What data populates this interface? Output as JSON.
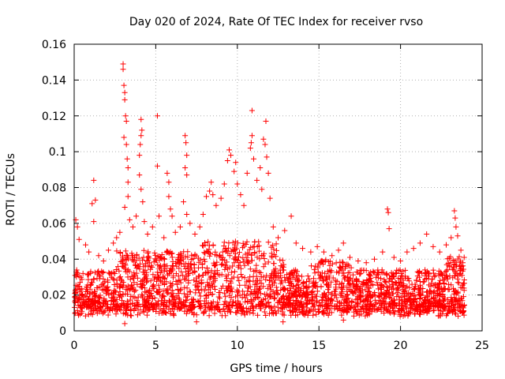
{
  "chart_data": {
    "type": "scatter",
    "title": "Day 020 of 2024, Rate Of TEC Index for receiver rvso",
    "xlabel": "GPS time / hours",
    "ylabel": "ROTI / TECUs",
    "xlim": [
      0,
      25
    ],
    "ylim": [
      0,
      0.16
    ],
    "xticks": [
      "0",
      "5",
      "10",
      "15",
      "20",
      "25"
    ],
    "yticks": [
      "0",
      "0.02",
      "0.04",
      "0.06",
      "0.08",
      "0.1",
      "0.12",
      "0.14",
      "0.16"
    ],
    "grid": true,
    "marker": "+",
    "color": "#ff0000",
    "series": [
      {
        "points": [
          [
            0.1,
            0.062
          ],
          [
            0.2,
            0.058
          ],
          [
            0.3,
            0.051
          ],
          [
            0.7,
            0.048
          ],
          [
            0.9,
            0.044
          ],
          [
            1.1,
            0.071
          ],
          [
            1.2,
            0.084
          ],
          [
            1.3,
            0.073
          ],
          [
            1.2,
            0.061
          ],
          [
            1.5,
            0.042
          ],
          [
            1.8,
            0.039
          ],
          [
            2.1,
            0.045
          ],
          [
            2.4,
            0.049
          ],
          [
            2.6,
            0.052
          ],
          [
            2.8,
            0.055
          ],
          [
            3.0,
            0.149
          ],
          [
            3.0,
            0.146
          ],
          [
            3.05,
            0.137
          ],
          [
            3.1,
            0.133
          ],
          [
            3.1,
            0.129
          ],
          [
            3.15,
            0.12
          ],
          [
            3.2,
            0.117
          ],
          [
            3.05,
            0.108
          ],
          [
            3.2,
            0.104
          ],
          [
            3.25,
            0.096
          ],
          [
            3.3,
            0.091
          ],
          [
            3.3,
            0.083
          ],
          [
            3.3,
            0.075
          ],
          [
            3.1,
            0.069
          ],
          [
            3.4,
            0.062
          ],
          [
            3.6,
            0.058
          ],
          [
            3.8,
            0.064
          ],
          [
            4.0,
            0.098
          ],
          [
            4.05,
            0.104
          ],
          [
            4.1,
            0.109
          ],
          [
            4.1,
            0.118
          ],
          [
            4.15,
            0.112
          ],
          [
            4.0,
            0.087
          ],
          [
            4.1,
            0.079
          ],
          [
            4.2,
            0.072
          ],
          [
            4.3,
            0.061
          ],
          [
            4.5,
            0.054
          ],
          [
            4.8,
            0.058
          ],
          [
            5.1,
            0.12
          ],
          [
            5.1,
            0.092
          ],
          [
            5.2,
            0.064
          ],
          [
            5.5,
            0.052
          ],
          [
            5.7,
            0.088
          ],
          [
            5.8,
            0.083
          ],
          [
            5.8,
            0.075
          ],
          [
            5.9,
            0.068
          ],
          [
            6.0,
            0.064
          ],
          [
            6.2,
            0.055
          ],
          [
            6.5,
            0.058
          ],
          [
            6.8,
            0.109
          ],
          [
            6.85,
            0.105
          ],
          [
            6.9,
            0.098
          ],
          [
            6.8,
            0.091
          ],
          [
            6.9,
            0.087
          ],
          [
            6.7,
            0.072
          ],
          [
            6.9,
            0.065
          ],
          [
            7.1,
            0.06
          ],
          [
            7.4,
            0.054
          ],
          [
            7.7,
            0.058
          ],
          [
            7.9,
            0.065
          ],
          [
            8.1,
            0.075
          ],
          [
            8.3,
            0.078
          ],
          [
            8.4,
            0.083
          ],
          [
            8.5,
            0.076
          ],
          [
            8.7,
            0.07
          ],
          [
            9.0,
            0.074
          ],
          [
            9.2,
            0.082
          ],
          [
            9.4,
            0.095
          ],
          [
            9.5,
            0.101
          ],
          [
            9.6,
            0.098
          ],
          [
            9.8,
            0.089
          ],
          [
            9.9,
            0.094
          ],
          [
            10.0,
            0.082
          ],
          [
            10.2,
            0.076
          ],
          [
            10.4,
            0.07
          ],
          [
            10.6,
            0.088
          ],
          [
            10.8,
            0.102
          ],
          [
            10.85,
            0.105
          ],
          [
            10.9,
            0.109
          ],
          [
            10.9,
            0.123
          ],
          [
            11.0,
            0.096
          ],
          [
            11.2,
            0.084
          ],
          [
            11.4,
            0.091
          ],
          [
            11.5,
            0.079
          ],
          [
            11.6,
            0.107
          ],
          [
            11.7,
            0.104
          ],
          [
            11.75,
            0.117
          ],
          [
            11.8,
            0.097
          ],
          [
            11.9,
            0.088
          ],
          [
            12.0,
            0.074
          ],
          [
            12.2,
            0.058
          ],
          [
            12.5,
            0.052
          ],
          [
            12.9,
            0.056
          ],
          [
            13.3,
            0.064
          ],
          [
            13.6,
            0.049
          ],
          [
            14.0,
            0.046
          ],
          [
            14.5,
            0.044
          ],
          [
            14.9,
            0.047
          ],
          [
            15.3,
            0.044
          ],
          [
            15.8,
            0.042
          ],
          [
            16.2,
            0.045
          ],
          [
            16.5,
            0.049
          ],
          [
            16.9,
            0.041
          ],
          [
            17.4,
            0.039
          ],
          [
            17.9,
            0.038
          ],
          [
            18.4,
            0.04
          ],
          [
            18.9,
            0.044
          ],
          [
            19.2,
            0.068
          ],
          [
            19.25,
            0.066
          ],
          [
            19.3,
            0.057
          ],
          [
            19.6,
            0.041
          ],
          [
            20.0,
            0.039
          ],
          [
            20.4,
            0.044
          ],
          [
            20.8,
            0.046
          ],
          [
            21.2,
            0.049
          ],
          [
            21.6,
            0.054
          ],
          [
            22.0,
            0.047
          ],
          [
            22.4,
            0.044
          ],
          [
            22.8,
            0.048
          ],
          [
            23.1,
            0.052
          ],
          [
            23.3,
            0.067
          ],
          [
            23.35,
            0.063
          ],
          [
            23.4,
            0.058
          ],
          [
            23.5,
            0.053
          ],
          [
            23.7,
            0.045
          ],
          [
            23.9,
            0.041
          ],
          [
            3.1,
            0.004
          ],
          [
            7.5,
            0.005
          ],
          [
            12.8,
            0.005
          ],
          [
            16.5,
            0.006
          ]
        ]
      }
    ]
  }
}
